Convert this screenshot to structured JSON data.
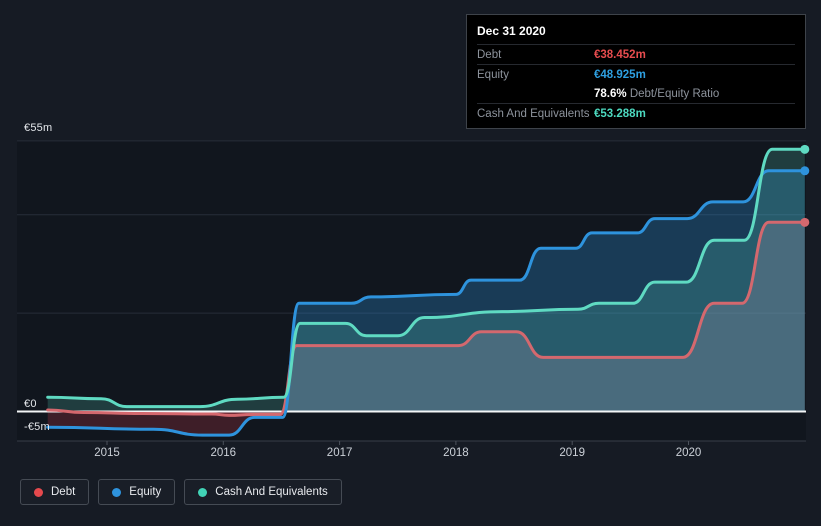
{
  "page": {
    "background": "#161b24"
  },
  "tooltip": {
    "date": "Dec 31 2020",
    "debt_label": "Debt",
    "debt_value": "€38.452m",
    "debt_color": "#e64c4e",
    "equity_label": "Equity",
    "equity_value": "€48.925m",
    "equity_color": "#2e9fe0",
    "ratio_value": "78.6%",
    "ratio_label": "Debt/Equity Ratio",
    "cash_label": "Cash And Equivalents",
    "cash_value": "€53.288m",
    "cash_color": "#4cd8bf"
  },
  "axis": {
    "y_labels": [
      {
        "text": "€55m",
        "value": 55
      },
      {
        "text": "€0",
        "value": 0
      },
      {
        "text": "-€5m",
        "value": -5
      }
    ],
    "x_labels": [
      "2015",
      "2016",
      "2017",
      "2018",
      "2019",
      "2020"
    ]
  },
  "legend": {
    "items": [
      {
        "label": "Debt",
        "color": "#e5494d"
      },
      {
        "label": "Equity",
        "color": "#2e93dd"
      },
      {
        "label": "Cash And Equivalents",
        "color": "#41d3b6"
      }
    ]
  },
  "chart_data": {
    "type": "area",
    "title": "Debt to Equity history",
    "unit": "EUR millions",
    "x_domain": [
      2014.49,
      2021.0
    ],
    "y_domain": [
      -6,
      55
    ],
    "x_tick_years": [
      2015,
      2016,
      2017,
      2018,
      2019,
      2020
    ],
    "y_gridline_values": [
      55,
      40,
      20
    ],
    "zero_line_value": 0,
    "legend_position": "bottom-left",
    "series": [
      {
        "name": "Debt",
        "color": "#d4686e",
        "fill": "rgba(208,116,126,0.32)",
        "negative_fill": "rgba(150,45,58,0.45)",
        "points": [
          [
            2014.49,
            0.3
          ],
          [
            2014.8,
            -0.2
          ],
          [
            2015.3,
            -0.4
          ],
          [
            2015.9,
            -0.5
          ],
          [
            2016.05,
            -0.8
          ],
          [
            2016.25,
            -0.6
          ],
          [
            2016.49,
            -0.6
          ],
          [
            2016.63,
            13.4
          ],
          [
            2018.02,
            13.4
          ],
          [
            2018.22,
            16.2
          ],
          [
            2018.52,
            16.2
          ],
          [
            2018.75,
            11.0
          ],
          [
            2019.95,
            11.0
          ],
          [
            2020.22,
            22.0
          ],
          [
            2020.46,
            22.0
          ],
          [
            2020.69,
            38.452
          ],
          [
            2021.0,
            38.452
          ]
        ]
      },
      {
        "name": "Equity",
        "color": "#2e93dd",
        "fill": "rgba(46,147,220,0.30)",
        "negative_fill": "rgba(160,50,62,0.32)",
        "points": [
          [
            2014.49,
            -3.2
          ],
          [
            2015.4,
            -3.6
          ],
          [
            2015.82,
            -4.8
          ],
          [
            2016.05,
            -4.8
          ],
          [
            2016.27,
            -1.2
          ],
          [
            2016.51,
            -1.2
          ],
          [
            2016.65,
            22.0
          ],
          [
            2017.1,
            22.0
          ],
          [
            2017.27,
            23.3
          ],
          [
            2018.0,
            23.8
          ],
          [
            2018.13,
            26.7
          ],
          [
            2018.55,
            26.7
          ],
          [
            2018.73,
            33.2
          ],
          [
            2019.03,
            33.2
          ],
          [
            2019.17,
            36.3
          ],
          [
            2019.56,
            36.3
          ],
          [
            2019.71,
            39.2
          ],
          [
            2019.99,
            39.2
          ],
          [
            2020.21,
            42.6
          ],
          [
            2020.47,
            42.6
          ],
          [
            2020.69,
            48.925
          ],
          [
            2021.0,
            48.925
          ]
        ]
      },
      {
        "name": "Cash And Equivalents",
        "color": "#5fdac2",
        "fill": "rgba(95,218,194,0.20)",
        "negative_fill": "rgba(95,218,194,0.20)",
        "points": [
          [
            2014.49,
            2.9
          ],
          [
            2014.95,
            2.6
          ],
          [
            2015.17,
            1.0
          ],
          [
            2015.8,
            1.0
          ],
          [
            2016.12,
            2.5
          ],
          [
            2016.52,
            2.9
          ],
          [
            2016.66,
            17.9
          ],
          [
            2017.05,
            17.9
          ],
          [
            2017.23,
            15.4
          ],
          [
            2017.5,
            15.4
          ],
          [
            2017.73,
            19.1
          ],
          [
            2018.4,
            20.3
          ],
          [
            2019.05,
            20.8
          ],
          [
            2019.23,
            22.0
          ],
          [
            2019.52,
            22.0
          ],
          [
            2019.71,
            26.3
          ],
          [
            2019.98,
            26.3
          ],
          [
            2020.22,
            34.8
          ],
          [
            2020.48,
            34.8
          ],
          [
            2020.72,
            53.288
          ],
          [
            2021.0,
            53.288
          ]
        ]
      }
    ],
    "end_dots": true
  }
}
